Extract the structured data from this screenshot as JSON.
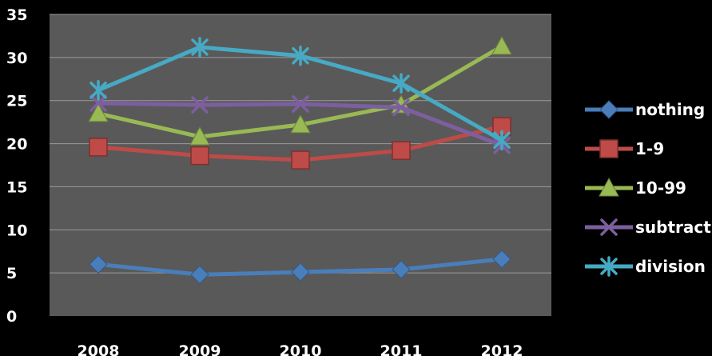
{
  "chart_data": {
    "type": "line",
    "title": "",
    "xlabel": "",
    "ylabel": "",
    "categories": [
      "2008",
      "2009",
      "2010",
      "2011",
      "2012"
    ],
    "ylim": [
      0,
      35
    ],
    "yticks": [
      "0",
      "5",
      "10",
      "15",
      "20",
      "25",
      "30",
      "35"
    ],
    "grid": true,
    "legend_position": "right",
    "plot_background": "#595959",
    "series": [
      {
        "name": "nothing",
        "marker": "diamond",
        "color": "#4a7ebb",
        "values": [
          6.0,
          4.8,
          5.1,
          5.4,
          6.6
        ]
      },
      {
        "name": "1-9",
        "marker": "square",
        "color": "#be4b48",
        "values": [
          19.6,
          18.6,
          18.1,
          19.2,
          22.0
        ]
      },
      {
        "name": "10-99",
        "marker": "triangle",
        "color": "#98b954",
        "values": [
          23.5,
          20.8,
          22.2,
          24.5,
          31.3
        ]
      },
      {
        "name": "subtracti",
        "marker": "x",
        "color": "#7d5fa0",
        "values": [
          24.7,
          24.5,
          24.6,
          24.2,
          19.8
        ]
      },
      {
        "name": "division",
        "marker": "star",
        "color": "#46aac5",
        "values": [
          26.2,
          31.2,
          30.2,
          27.0,
          20.4
        ]
      }
    ]
  }
}
